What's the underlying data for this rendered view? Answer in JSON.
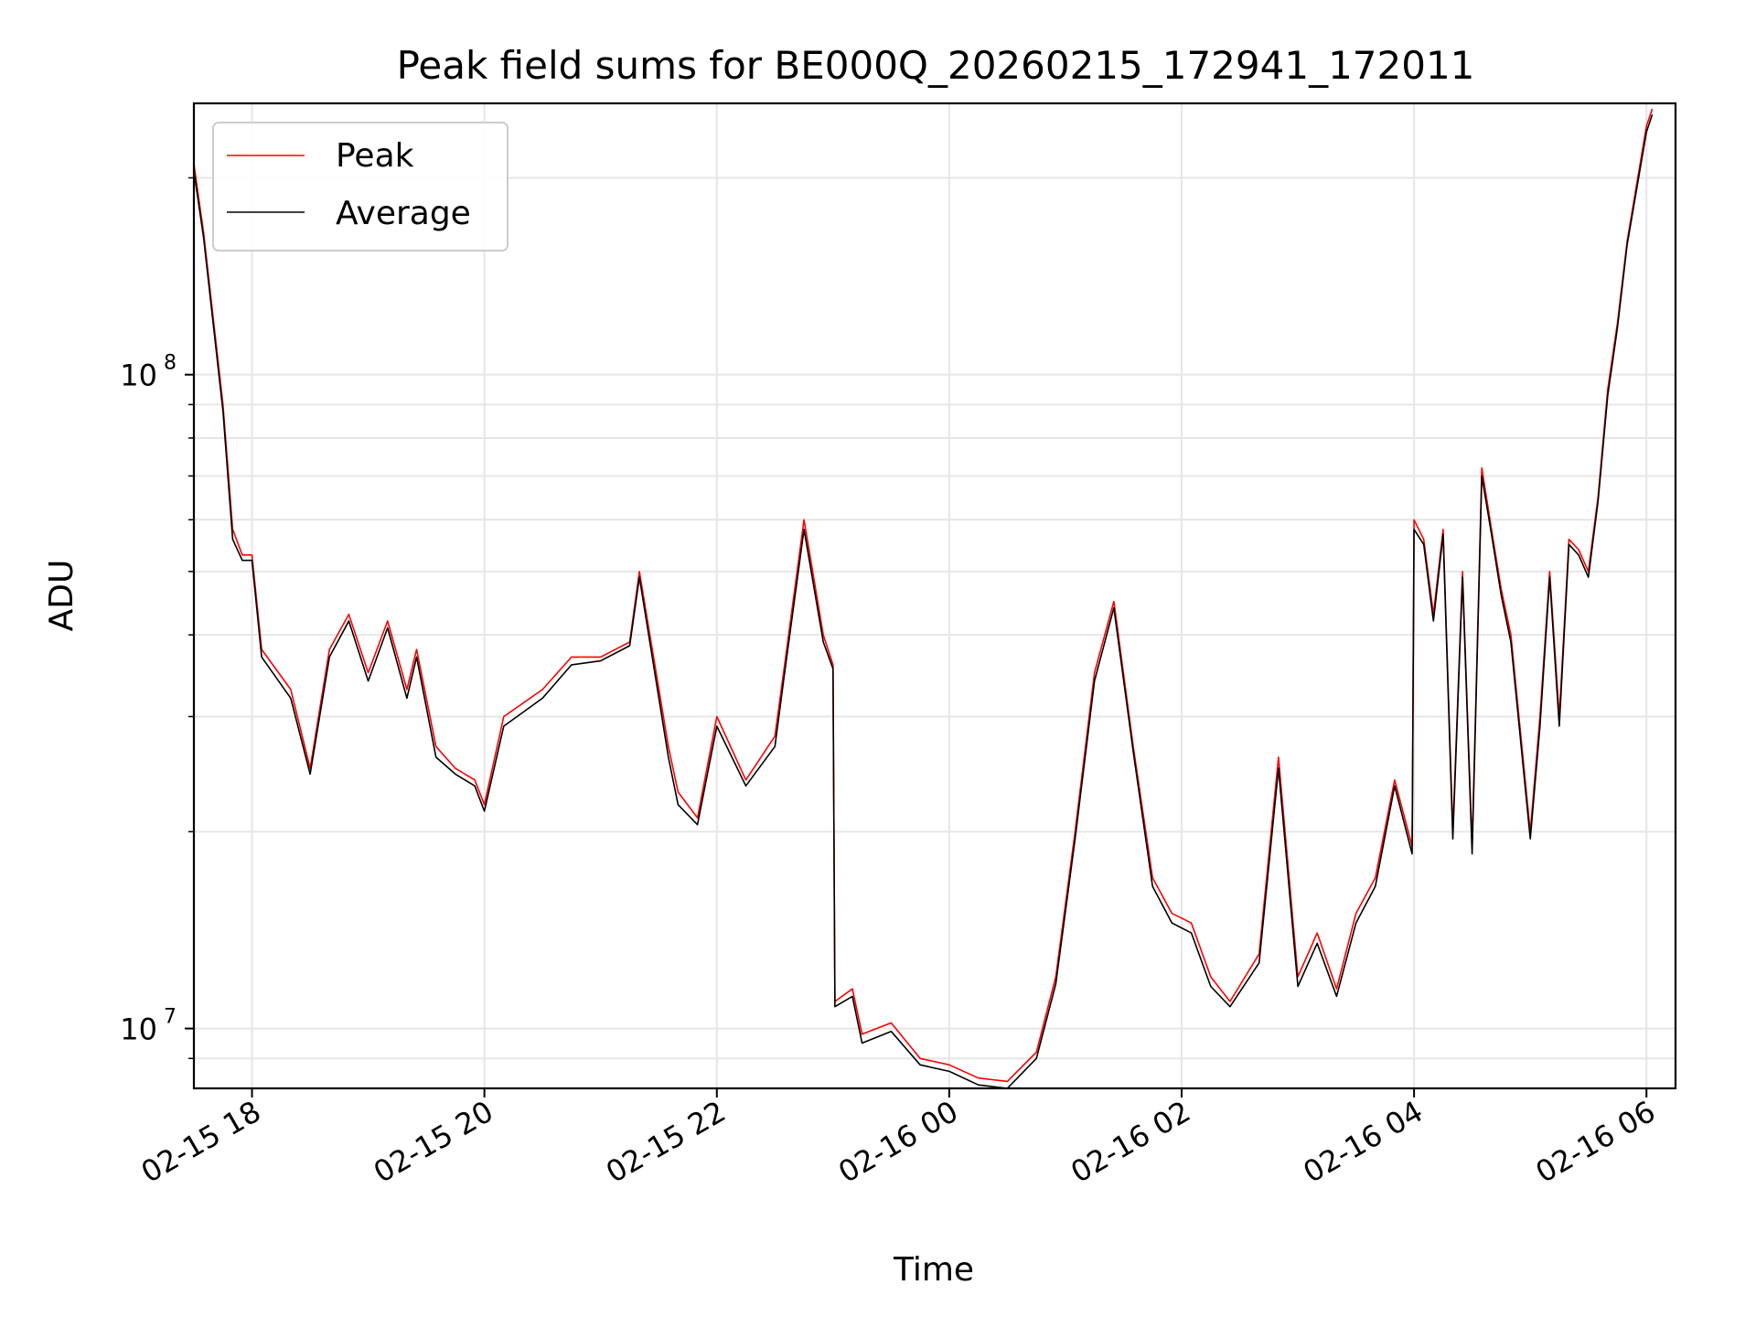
{
  "chart_data": {
    "type": "line",
    "title": "Peak field sums for BE000Q_20260215_172941_172011",
    "xlabel": "Time",
    "ylabel": "ADU",
    "yscale": "log",
    "ylim": [
      8100000,
      260000000
    ],
    "xlim": [
      "2026-02-15 17:30",
      "2026-02-16 06:15"
    ],
    "x_ticks": [
      "02-15 18",
      "02-15 20",
      "02-15 22",
      "02-16 00",
      "02-16 02",
      "02-16 04",
      "02-16 06"
    ],
    "x_tick_times": [
      "2026-02-15 18:00",
      "2026-02-15 20:00",
      "2026-02-15 22:00",
      "2026-02-16 00:00",
      "2026-02-16 02:00",
      "2026-02-16 04:00",
      "2026-02-16 06:00"
    ],
    "y_ticks": [
      {
        "value": 10000000,
        "base": "10",
        "exp": "7"
      },
      {
        "value": 100000000,
        "base": "10",
        "exp": "8"
      }
    ],
    "grid": true,
    "legend_position": "upper-left",
    "legend": [
      "Peak",
      "Average"
    ],
    "series": [
      {
        "name": "Peak",
        "color": "#ff0000"
      },
      {
        "name": "Average",
        "color": "#000000"
      }
    ],
    "x": [
      "2026-02-15 17:30",
      "2026-02-15 17:35",
      "2026-02-15 17:45",
      "2026-02-15 17:50",
      "2026-02-15 17:55",
      "2026-02-15 18:00",
      "2026-02-15 18:05",
      "2026-02-15 18:20",
      "2026-02-15 18:30",
      "2026-02-15 18:40",
      "2026-02-15 18:50",
      "2026-02-15 19:00",
      "2026-02-15 19:10",
      "2026-02-15 19:20",
      "2026-02-15 19:25",
      "2026-02-15 19:35",
      "2026-02-15 19:45",
      "2026-02-15 19:55",
      "2026-02-15 20:00",
      "2026-02-15 20:10",
      "2026-02-15 20:30",
      "2026-02-15 20:45",
      "2026-02-15 21:00",
      "2026-02-15 21:15",
      "2026-02-15 21:20",
      "2026-02-15 21:35",
      "2026-02-15 21:40",
      "2026-02-15 21:50",
      "2026-02-15 22:00",
      "2026-02-15 22:15",
      "2026-02-15 22:30",
      "2026-02-15 22:35",
      "2026-02-15 22:45",
      "2026-02-15 22:55",
      "2026-02-15 23:00",
      "2026-02-15 23:01",
      "2026-02-15 23:10",
      "2026-02-15 23:15",
      "2026-02-15 23:30",
      "2026-02-15 23:45",
      "2026-02-16 00:00",
      "2026-02-16 00:15",
      "2026-02-16 00:30",
      "2026-02-16 00:45",
      "2026-02-16 00:55",
      "2026-02-16 01:05",
      "2026-02-16 01:15",
      "2026-02-16 01:25",
      "2026-02-16 01:35",
      "2026-02-16 01:45",
      "2026-02-16 01:55",
      "2026-02-16 02:05",
      "2026-02-16 02:15",
      "2026-02-16 02:25",
      "2026-02-16 02:40",
      "2026-02-16 02:50",
      "2026-02-16 03:00",
      "2026-02-16 03:10",
      "2026-02-16 03:20",
      "2026-02-16 03:30",
      "2026-02-16 03:40",
      "2026-02-16 03:50",
      "2026-02-16 03:59",
      "2026-02-16 04:00",
      "2026-02-16 04:05",
      "2026-02-16 04:10",
      "2026-02-16 04:15",
      "2026-02-16 04:20",
      "2026-02-16 04:25",
      "2026-02-16 04:30",
      "2026-02-16 04:35",
      "2026-02-16 04:40",
      "2026-02-16 04:45",
      "2026-02-16 04:50",
      "2026-02-16 05:00",
      "2026-02-16 05:05",
      "2026-02-16 05:10",
      "2026-02-16 05:15",
      "2026-02-16 05:20",
      "2026-02-16 05:25",
      "2026-02-16 05:30",
      "2026-02-16 05:35",
      "2026-02-16 05:40",
      "2026-02-16 05:45",
      "2026-02-16 05:50",
      "2026-02-16 06:00",
      "2026-02-16 06:03"
    ],
    "peak_values": [
      210000000,
      165000000,
      90000000,
      58000000,
      53000000,
      53000000,
      38000000,
      33000000,
      25000000,
      38000000,
      43000000,
      35000000,
      42000000,
      33000000,
      38000000,
      27000000,
      25000000,
      24000000,
      22000000,
      30000000,
      33000000,
      37000000,
      37000000,
      39000000,
      50000000,
      27000000,
      23000000,
      21000000,
      30000000,
      24000000,
      28000000,
      36000000,
      60000000,
      40000000,
      36000000,
      11000000,
      11500000,
      9800000,
      10200000,
      9000000,
      8800000,
      8400000,
      8300000,
      9200000,
      12000000,
      20000000,
      35000000,
      45000000,
      27000000,
      17000000,
      15000000,
      14500000,
      12000000,
      11000000,
      13000000,
      26000000,
      12000000,
      14000000,
      11500000,
      15000000,
      17000000,
      24000000,
      19000000,
      60000000,
      56000000,
      43000000,
      58000000,
      20000000,
      50000000,
      19000000,
      72000000,
      58000000,
      47000000,
      40000000,
      20000000,
      30000000,
      50000000,
      30000000,
      56000000,
      54000000,
      50000000,
      65000000,
      95000000,
      120000000,
      160000000,
      240000000,
      255000000
    ],
    "average_values": [
      205000000,
      162000000,
      88000000,
      56000000,
      52000000,
      52000000,
      37000000,
      32000000,
      24500000,
      37000000,
      42000000,
      34000000,
      41000000,
      32000000,
      37000000,
      26000000,
      24500000,
      23500000,
      21500000,
      29000000,
      32000000,
      36000000,
      36500000,
      38500000,
      49000000,
      26000000,
      22000000,
      20500000,
      29000000,
      23500000,
      27000000,
      35000000,
      58000000,
      39000000,
      35500000,
      10800000,
      11200000,
      9500000,
      9900000,
      8800000,
      8600000,
      8200000,
      8100000,
      9000000,
      11700000,
      19500000,
      34000000,
      44000000,
      26500000,
      16500000,
      14500000,
      14000000,
      11600000,
      10800000,
      12600000,
      25000000,
      11600000,
      13500000,
      11200000,
      14500000,
      16500000,
      23500000,
      18500000,
      58000000,
      55000000,
      42000000,
      57000000,
      19500000,
      49000000,
      18500000,
      70000000,
      57000000,
      46000000,
      39000000,
      19500000,
      29000000,
      49000000,
      29000000,
      55000000,
      53000000,
      49000000,
      64000000,
      93000000,
      118000000,
      158000000,
      235000000,
      250000000
    ]
  }
}
